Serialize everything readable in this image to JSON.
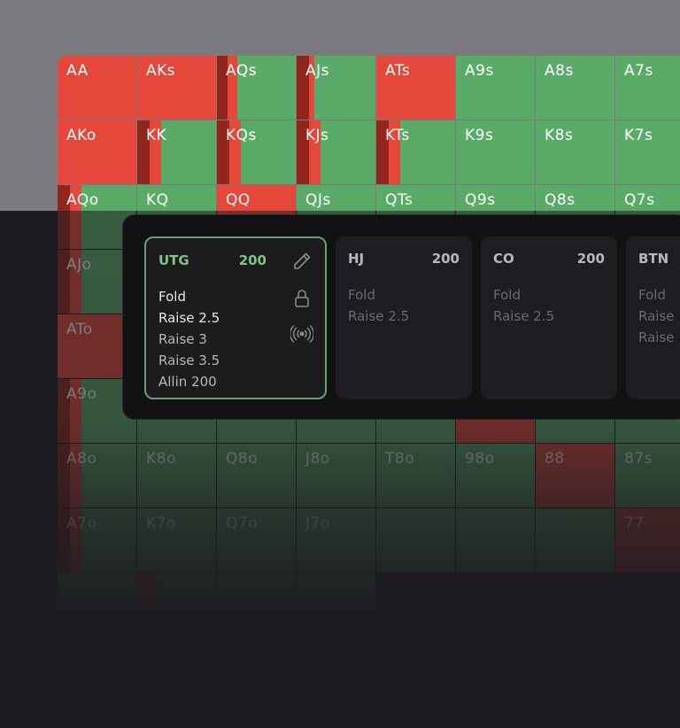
{
  "grid": {
    "cells": [
      {
        "label": "AA",
        "col": 0,
        "row": 0,
        "fold": 100,
        "dark": 0
      },
      {
        "label": "AKs",
        "col": 1,
        "row": 0,
        "fold": 100,
        "dark": 0
      },
      {
        "label": "AQs",
        "col": 2,
        "row": 0,
        "fold": 26,
        "dark": 12
      },
      {
        "label": "AJs",
        "col": 3,
        "row": 0,
        "fold": 23,
        "dark": 14
      },
      {
        "label": "ATs",
        "col": 4,
        "row": 0,
        "fold": 100,
        "dark": 0
      },
      {
        "label": "A9s",
        "col": 5,
        "row": 0,
        "fold": 0,
        "dark": 0
      },
      {
        "label": "A8s",
        "col": 6,
        "row": 0,
        "fold": 0,
        "dark": 0
      },
      {
        "label": "A7s",
        "col": 7,
        "row": 0,
        "fold": 0,
        "dark": 0
      },
      {
        "label": "AKo",
        "col": 0,
        "row": 1,
        "fold": 100,
        "dark": 0
      },
      {
        "label": "KK",
        "col": 1,
        "row": 1,
        "fold": 30,
        "dark": 14
      },
      {
        "label": "KQs",
        "col": 2,
        "row": 1,
        "fold": 30,
        "dark": 14
      },
      {
        "label": "KJs",
        "col": 3,
        "row": 1,
        "fold": 30,
        "dark": 14
      },
      {
        "label": "KTs",
        "col": 4,
        "row": 1,
        "fold": 30,
        "dark": 14
      },
      {
        "label": "K9s",
        "col": 5,
        "row": 1,
        "fold": 0,
        "dark": 0
      },
      {
        "label": "K8s",
        "col": 6,
        "row": 1,
        "fold": 0,
        "dark": 0
      },
      {
        "label": "K7s",
        "col": 7,
        "row": 1,
        "fold": 0,
        "dark": 0
      },
      {
        "label": "AQo",
        "col": 0,
        "row": 2,
        "fold": 30,
        "dark": 14
      },
      {
        "label": "KQ",
        "col": 1,
        "row": 2,
        "fold": 0,
        "dark": 0
      },
      {
        "label": "QQ",
        "col": 2,
        "row": 2,
        "fold": 100,
        "dark": 0
      },
      {
        "label": "QJs",
        "col": 3,
        "row": 2,
        "fold": 0,
        "dark": 0
      },
      {
        "label": "QTs",
        "col": 4,
        "row": 2,
        "fold": 0,
        "dark": 0
      },
      {
        "label": "Q9s",
        "col": 5,
        "row": 2,
        "fold": 0,
        "dark": 0
      },
      {
        "label": "Q8s",
        "col": 6,
        "row": 2,
        "fold": 0,
        "dark": 0
      },
      {
        "label": "Q7s",
        "col": 7,
        "row": 2,
        "fold": 0,
        "dark": 0
      },
      {
        "label": "AJo",
        "col": 0,
        "row": 3,
        "fold": 30,
        "dark": 14
      },
      {
        "label": "",
        "col": 1,
        "row": 3,
        "fold": 0,
        "dark": 0
      },
      {
        "label": "",
        "col": 2,
        "row": 3,
        "fold": 0,
        "dark": 0
      },
      {
        "label": "",
        "col": 3,
        "row": 3,
        "fold": 0,
        "dark": 0
      },
      {
        "label": "",
        "col": 4,
        "row": 3,
        "fold": 0,
        "dark": 0
      },
      {
        "label": "",
        "col": 5,
        "row": 3,
        "fold": 0,
        "dark": 0
      },
      {
        "label": "",
        "col": 6,
        "row": 3,
        "fold": 0,
        "dark": 0
      },
      {
        "label": "",
        "col": 7,
        "row": 3,
        "fold": 0,
        "dark": 0
      },
      {
        "label": "ATo",
        "col": 0,
        "row": 4,
        "fold": 100,
        "dark": 0
      },
      {
        "label": "",
        "col": 1,
        "row": 4,
        "fold": 0,
        "dark": 0
      },
      {
        "label": "",
        "col": 2,
        "row": 4,
        "fold": 0,
        "dark": 0
      },
      {
        "label": "",
        "col": 3,
        "row": 4,
        "fold": 0,
        "dark": 0
      },
      {
        "label": "",
        "col": 4,
        "row": 4,
        "fold": 0,
        "dark": 0
      },
      {
        "label": "",
        "col": 5,
        "row": 4,
        "fold": 0,
        "dark": 0
      },
      {
        "label": "",
        "col": 6,
        "row": 4,
        "fold": 0,
        "dark": 0
      },
      {
        "label": "",
        "col": 7,
        "row": 4,
        "fold": 0,
        "dark": 0
      },
      {
        "label": "A9o",
        "col": 0,
        "row": 5,
        "fold": 30,
        "dark": 14
      },
      {
        "label": "",
        "col": 1,
        "row": 5,
        "fold": 0,
        "dark": 0
      },
      {
        "label": "",
        "col": 2,
        "row": 5,
        "fold": 0,
        "dark": 0
      },
      {
        "label": "",
        "col": 3,
        "row": 5,
        "fold": 0,
        "dark": 0
      },
      {
        "label": "",
        "col": 4,
        "row": 5,
        "fold": 0,
        "dark": 0
      },
      {
        "label": "",
        "col": 5,
        "row": 5,
        "fold": 100,
        "dark": 0
      },
      {
        "label": "",
        "col": 6,
        "row": 5,
        "fold": 0,
        "dark": 0
      },
      {
        "label": "",
        "col": 7,
        "row": 5,
        "fold": 0,
        "dark": 0
      },
      {
        "label": "A8o",
        "col": 0,
        "row": 6,
        "fold": 30,
        "dark": 14
      },
      {
        "label": "K8o",
        "col": 1,
        "row": 6,
        "fold": 0,
        "dark": 0
      },
      {
        "label": "Q8o",
        "col": 2,
        "row": 6,
        "fold": 0,
        "dark": 0
      },
      {
        "label": "J8o",
        "col": 3,
        "row": 6,
        "fold": 0,
        "dark": 0
      },
      {
        "label": "T8o",
        "col": 4,
        "row": 6,
        "fold": 0,
        "dark": 0
      },
      {
        "label": "98o",
        "col": 5,
        "row": 6,
        "fold": 0,
        "dark": 0
      },
      {
        "label": "88",
        "col": 6,
        "row": 6,
        "fold": 100,
        "dark": 0
      },
      {
        "label": "87s",
        "col": 7,
        "row": 6,
        "fold": 0,
        "dark": 0
      },
      {
        "label": "A7o",
        "col": 0,
        "row": 7,
        "fold": 30,
        "dark": 14
      },
      {
        "label": "K7o",
        "col": 1,
        "row": 7,
        "fold": 0,
        "dark": 0
      },
      {
        "label": "Q7o",
        "col": 2,
        "row": 7,
        "fold": 0,
        "dark": 0
      },
      {
        "label": "J7o",
        "col": 3,
        "row": 7,
        "fold": 0,
        "dark": 0
      },
      {
        "label": "",
        "col": 4,
        "row": 7,
        "fold": 0,
        "dark": 0
      },
      {
        "label": "",
        "col": 5,
        "row": 7,
        "fold": 0,
        "dark": 0
      },
      {
        "label": "",
        "col": 6,
        "row": 7,
        "fold": 0,
        "dark": 0
      },
      {
        "label": "77",
        "col": 7,
        "row": 7,
        "fold": 100,
        "dark": 0
      },
      {
        "label": "",
        "col": 0,
        "row": 8,
        "fold": 0,
        "dark": 0
      },
      {
        "label": "",
        "col": 1,
        "row": 8,
        "fold": 25,
        "dark": 0
      },
      {
        "label": "",
        "col": 2,
        "row": 8,
        "fold": 0,
        "dark": 0
      },
      {
        "label": "",
        "col": 3,
        "row": 8,
        "fold": 0,
        "dark": 0
      }
    ]
  },
  "positions": [
    {
      "name": "UTG",
      "stack": "200",
      "active": true,
      "actions": [
        "Fold",
        "Raise 2.5",
        "Raise 3",
        "Raise 3.5",
        "Allin 200"
      ]
    },
    {
      "name": "HJ",
      "stack": "200",
      "active": false,
      "actions": [
        "Fold",
        "Raise 2.5"
      ]
    },
    {
      "name": "CO",
      "stack": "200",
      "active": false,
      "actions": [
        "Fold",
        "Raise 2.5"
      ]
    },
    {
      "name": "BTN",
      "stack": "",
      "active": false,
      "actions": [
        "Fold",
        "Raise",
        "Raise"
      ]
    }
  ],
  "icons": {
    "edit": "pencil-icon",
    "lock": "lock-icon",
    "broadcast": "broadcast-icon"
  },
  "colors": {
    "raise": "#5aab68",
    "fold": "#e5473a",
    "dark_strip": "#92261c",
    "active_border": "#6c9c70",
    "active_text": "#7ec487"
  }
}
